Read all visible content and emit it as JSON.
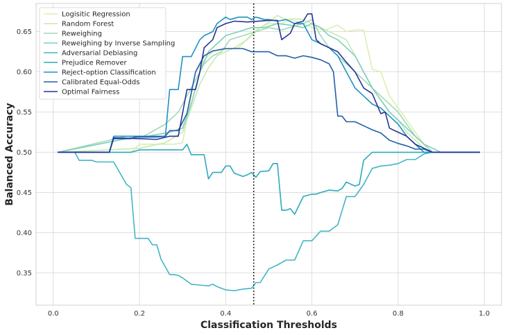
{
  "chart_data": {
    "type": "line",
    "xlabel": "Classification Thresholds",
    "ylabel": "Balanced Accuracy",
    "xlim": [
      -0.04,
      1.04
    ],
    "ylim": [
      0.31,
      0.685
    ],
    "xticks": [
      "0.0",
      "0.2",
      "0.4",
      "0.6",
      "0.8",
      "1.0"
    ],
    "yticks": [
      "0.35",
      "0.40",
      "0.45",
      "0.50",
      "0.55",
      "0.60",
      "0.65"
    ],
    "grid": true,
    "legend_position": "top-left",
    "vline_x": 0.465,
    "series": [
      {
        "name": "Logisitic Regression",
        "color": "#d9efb2",
        "x": [
          0.01,
          0.18,
          0.2,
          0.28,
          0.3,
          0.33,
          0.35,
          0.37,
          0.4,
          0.43,
          0.47,
          0.5,
          0.53,
          0.55,
          0.58,
          0.6,
          0.63,
          0.66,
          0.68,
          0.7,
          0.72,
          0.74,
          0.76,
          0.78,
          0.8,
          0.82,
          0.84,
          0.86,
          0.88,
          0.9,
          0.99
        ],
        "y": [
          0.5,
          0.5,
          0.51,
          0.51,
          0.512,
          0.6,
          0.615,
          0.625,
          0.628,
          0.63,
          0.652,
          0.66,
          0.66,
          0.665,
          0.66,
          0.655,
          0.652,
          0.658,
          0.65,
          0.652,
          0.652,
          0.603,
          0.6,
          0.57,
          0.555,
          0.54,
          0.525,
          0.51,
          0.5,
          0.5,
          0.5
        ]
      },
      {
        "name": "Random Forest",
        "color": "#c7e9b4",
        "x": [
          0.01,
          0.2,
          0.26,
          0.3,
          0.32,
          0.34,
          0.36,
          0.38,
          0.4,
          0.42,
          0.45,
          0.48,
          0.5,
          0.52,
          0.54,
          0.56,
          0.58,
          0.6,
          0.62,
          0.64,
          0.66,
          0.68,
          0.7,
          0.72,
          0.74,
          0.76,
          0.78,
          0.8,
          0.82,
          0.84,
          0.86,
          0.88,
          0.99
        ],
        "y": [
          0.5,
          0.505,
          0.512,
          0.525,
          0.555,
          0.585,
          0.605,
          0.62,
          0.625,
          0.63,
          0.64,
          0.655,
          0.662,
          0.67,
          0.665,
          0.666,
          0.665,
          0.66,
          0.655,
          0.65,
          0.645,
          0.64,
          0.62,
          0.6,
          0.58,
          0.565,
          0.55,
          0.54,
          0.525,
          0.515,
          0.505,
          0.5,
          0.5
        ]
      },
      {
        "name": "Reweighing",
        "color": "#a1dab4",
        "x": [
          0.01,
          0.17,
          0.21,
          0.26,
          0.29,
          0.31,
          0.33,
          0.35,
          0.37,
          0.39,
          0.41,
          0.44,
          0.47,
          0.5,
          0.53,
          0.56,
          0.58,
          0.6,
          0.62,
          0.64,
          0.66,
          0.68,
          0.7,
          0.72,
          0.74,
          0.76,
          0.78,
          0.8,
          0.82,
          0.84,
          0.86,
          0.88,
          0.99
        ],
        "y": [
          0.5,
          0.52,
          0.52,
          0.535,
          0.55,
          0.57,
          0.59,
          0.61,
          0.62,
          0.625,
          0.64,
          0.645,
          0.65,
          0.655,
          0.652,
          0.657,
          0.66,
          0.665,
          0.645,
          0.63,
          0.62,
          0.61,
          0.6,
          0.59,
          0.58,
          0.57,
          0.56,
          0.55,
          0.535,
          0.52,
          0.51,
          0.5,
          0.5
        ]
      },
      {
        "name": "Reweighing by Inverse Sampling",
        "color": "#7fcdbb",
        "x": [
          0.01,
          0.18,
          0.22,
          0.27,
          0.3,
          0.32,
          0.34,
          0.36,
          0.38,
          0.4,
          0.43,
          0.46,
          0.49,
          0.52,
          0.55,
          0.58,
          0.6,
          0.62,
          0.64,
          0.66,
          0.68,
          0.7,
          0.72,
          0.74,
          0.76,
          0.78,
          0.8,
          0.82,
          0.84,
          0.86,
          0.88,
          0.9,
          0.99
        ],
        "y": [
          0.5,
          0.518,
          0.52,
          0.525,
          0.53,
          0.56,
          0.6,
          0.625,
          0.635,
          0.645,
          0.65,
          0.655,
          0.655,
          0.66,
          0.658,
          0.655,
          0.66,
          0.655,
          0.645,
          0.64,
          0.63,
          0.62,
          0.6,
          0.58,
          0.565,
          0.55,
          0.54,
          0.53,
          0.52,
          0.51,
          0.505,
          0.5,
          0.5
        ]
      },
      {
        "name": "Adversarial Debiasing",
        "color": "#41b6c4",
        "x": [
          0.01,
          0.05,
          0.06,
          0.09,
          0.1,
          0.14,
          0.17,
          0.18,
          0.19,
          0.22,
          0.23,
          0.24,
          0.25,
          0.27,
          0.28,
          0.29,
          0.3,
          0.32,
          0.34,
          0.36,
          0.37,
          0.38,
          0.4,
          0.42,
          0.44,
          0.46,
          0.47,
          0.48,
          0.5,
          0.52,
          0.54,
          0.56,
          0.58,
          0.6,
          0.62,
          0.64,
          0.66,
          0.68,
          0.7,
          0.72,
          0.74,
          0.76,
          0.78,
          0.8,
          0.82,
          0.84,
          0.86,
          0.88,
          0.99
        ],
        "y": [
          0.5,
          0.5,
          0.49,
          0.49,
          0.488,
          0.488,
          0.46,
          0.456,
          0.393,
          0.393,
          0.385,
          0.385,
          0.367,
          0.348,
          0.348,
          0.347,
          0.344,
          0.336,
          0.335,
          0.334,
          0.336,
          0.333,
          0.329,
          0.328,
          0.33,
          0.331,
          0.338,
          0.338,
          0.355,
          0.36,
          0.366,
          0.366,
          0.39,
          0.39,
          0.402,
          0.402,
          0.41,
          0.445,
          0.445,
          0.46,
          0.48,
          0.483,
          0.484,
          0.486,
          0.491,
          0.491,
          0.498,
          0.5,
          0.5
        ]
      },
      {
        "name": "Prejudice Remover",
        "color": "#2ca9bd",
        "x": [
          0.01,
          0.18,
          0.2,
          0.3,
          0.31,
          0.32,
          0.35,
          0.36,
          0.37,
          0.39,
          0.4,
          0.41,
          0.42,
          0.44,
          0.45,
          0.46,
          0.47,
          0.48,
          0.5,
          0.51,
          0.52,
          0.53,
          0.54,
          0.55,
          0.56,
          0.58,
          0.6,
          0.61,
          0.62,
          0.64,
          0.66,
          0.67,
          0.68,
          0.7,
          0.71,
          0.72,
          0.74,
          0.76,
          0.78,
          0.8,
          0.99
        ],
        "y": [
          0.5,
          0.5,
          0.503,
          0.503,
          0.51,
          0.497,
          0.497,
          0.467,
          0.475,
          0.475,
          0.483,
          0.483,
          0.474,
          0.47,
          0.472,
          0.475,
          0.469,
          0.476,
          0.477,
          0.486,
          0.486,
          0.428,
          0.428,
          0.43,
          0.423,
          0.445,
          0.448,
          0.448,
          0.45,
          0.453,
          0.452,
          0.455,
          0.463,
          0.458,
          0.46,
          0.49,
          0.5,
          0.5,
          0.5,
          0.5,
          0.5
        ]
      },
      {
        "name": "Reject-option Classification",
        "color": "#1d91c0",
        "x": [
          0.01,
          0.13,
          0.14,
          0.2,
          0.26,
          0.27,
          0.29,
          0.3,
          0.32,
          0.34,
          0.35,
          0.37,
          0.38,
          0.4,
          0.41,
          0.43,
          0.45,
          0.46,
          0.47,
          0.49,
          0.5,
          0.52,
          0.54,
          0.56,
          0.58,
          0.6,
          0.62,
          0.64,
          0.66,
          0.68,
          0.7,
          0.72,
          0.74,
          0.76,
          0.78,
          0.8,
          0.82,
          0.84,
          0.86,
          0.88,
          0.99
        ],
        "y": [
          0.5,
          0.5,
          0.52,
          0.52,
          0.52,
          0.578,
          0.578,
          0.619,
          0.619,
          0.64,
          0.645,
          0.65,
          0.66,
          0.668,
          0.665,
          0.668,
          0.668,
          0.665,
          0.668,
          0.665,
          0.665,
          0.663,
          0.665,
          0.66,
          0.66,
          0.64,
          0.635,
          0.63,
          0.62,
          0.6,
          0.58,
          0.57,
          0.56,
          0.555,
          0.545,
          0.535,
          0.52,
          0.51,
          0.5,
          0.5,
          0.5
        ]
      },
      {
        "name": "Calibrated Equal-Odds",
        "color": "#225ea8",
        "x": [
          0.01,
          0.13,
          0.14,
          0.18,
          0.19,
          0.24,
          0.26,
          0.27,
          0.29,
          0.31,
          0.33,
          0.35,
          0.37,
          0.4,
          0.44,
          0.46,
          0.48,
          0.5,
          0.52,
          0.54,
          0.56,
          0.58,
          0.6,
          0.62,
          0.64,
          0.65,
          0.66,
          0.67,
          0.68,
          0.7,
          0.72,
          0.74,
          0.76,
          0.78,
          0.8,
          0.82,
          0.84,
          0.86,
          0.88,
          0.99
        ],
        "y": [
          0.5,
          0.5,
          0.517,
          0.517,
          0.519,
          0.519,
          0.52,
          0.527,
          0.527,
          0.548,
          0.6,
          0.62,
          0.626,
          0.629,
          0.629,
          0.625,
          0.625,
          0.625,
          0.62,
          0.62,
          0.617,
          0.62,
          0.618,
          0.615,
          0.61,
          0.6,
          0.545,
          0.545,
          0.538,
          0.538,
          0.533,
          0.528,
          0.524,
          0.515,
          0.511,
          0.508,
          0.504,
          0.504,
          0.5,
          0.5
        ]
      },
      {
        "name": "Optimal Fairness",
        "color": "#253494",
        "x": [
          0.01,
          0.13,
          0.14,
          0.2,
          0.24,
          0.27,
          0.29,
          0.31,
          0.33,
          0.34,
          0.35,
          0.37,
          0.38,
          0.4,
          0.42,
          0.45,
          0.5,
          0.52,
          0.53,
          0.55,
          0.56,
          0.58,
          0.59,
          0.6,
          0.61,
          0.62,
          0.64,
          0.66,
          0.68,
          0.7,
          0.72,
          0.74,
          0.76,
          0.77,
          0.78,
          0.8,
          0.82,
          0.84,
          0.86,
          0.88,
          0.99
        ],
        "y": [
          0.5,
          0.5,
          0.518,
          0.517,
          0.516,
          0.52,
          0.52,
          0.578,
          0.578,
          0.6,
          0.63,
          0.64,
          0.655,
          0.66,
          0.663,
          0.662,
          0.664,
          0.664,
          0.64,
          0.648,
          0.66,
          0.663,
          0.672,
          0.672,
          0.64,
          0.635,
          0.63,
          0.625,
          0.612,
          0.6,
          0.58,
          0.573,
          0.548,
          0.55,
          0.53,
          0.525,
          0.52,
          0.51,
          0.505,
          0.5,
          0.5
        ]
      }
    ]
  }
}
